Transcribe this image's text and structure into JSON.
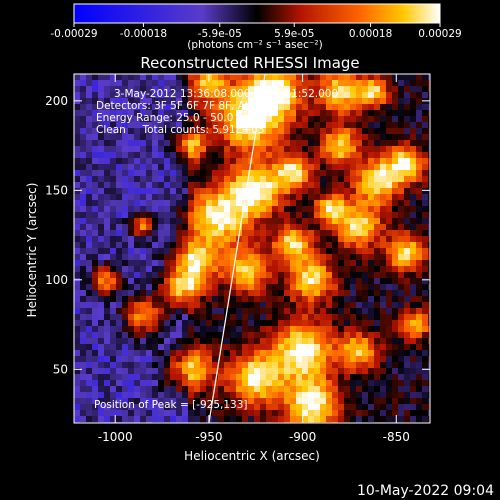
{
  "chart_data": {
    "type": "heatmap",
    "title": "Reconstructed RHESSI Image",
    "xlabel": "Heliocentric X (arcsec)",
    "ylabel": "Heliocentric Y (arcsec)",
    "xlim": [
      -1022,
      -832
    ],
    "ylim": [
      20,
      215
    ],
    "x_ticks": [
      -1000,
      -950,
      -900,
      -850
    ],
    "y_ticks": [
      50,
      100,
      150,
      200
    ],
    "colorbar": {
      "min": -0.00029,
      "max": 0.00029,
      "ticks": [
        "-0.00029",
        "-0.00018",
        "-5.9e-05",
        "5.9e-05",
        "0.00018",
        "0.00029"
      ],
      "unit_label": "(photons cm⁻² s⁻¹ asec⁻²)",
      "palette": [
        "#0000ff",
        "#5a3cc8",
        "#000000",
        "#b41400",
        "#ff6400",
        "#ffc800",
        "#ffffff"
      ]
    },
    "annotations": {
      "time_range": "3-May-2012 13:36:08.000 to 13:41:52.000",
      "detectors": "Detectors: 3F 5F 6F 7F 8F, Att 0",
      "energy": "Energy Range: 25.0 - 50.0 keV",
      "clean": "Clean     Total counts: 5.91E+03",
      "peak": "Position of Peak = [-925,133]"
    },
    "limb_line": {
      "x": [
        -920,
        -950
      ],
      "y": [
        215,
        20
      ]
    },
    "grid": false
  },
  "footer": {
    "timestamp": "10-May-2022 09:04"
  }
}
